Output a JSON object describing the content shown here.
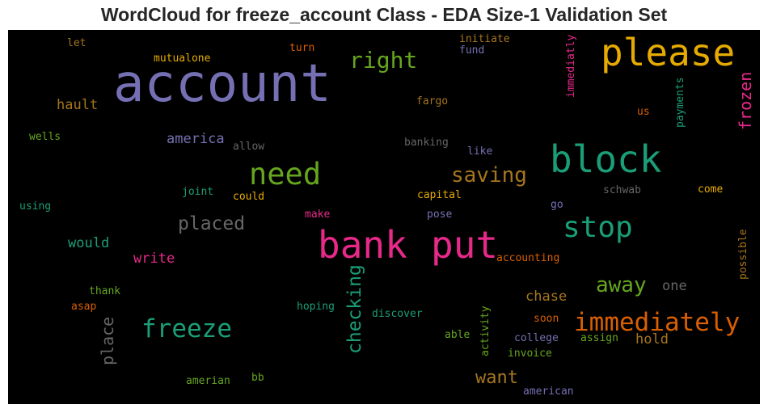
{
  "chart_data": {
    "type": "wordcloud",
    "title": "WordCloud for freeze_account Class - EDA Size-1 Validation Set",
    "background": "#000000",
    "words": [
      {
        "text": "account",
        "color": "#7570b3",
        "weight": 1.0
      },
      {
        "text": "please",
        "color": "#e6ab02",
        "weight": 0.62
      },
      {
        "text": "bank",
        "color": "#e7298a",
        "weight": 0.62
      },
      {
        "text": "put",
        "color": "#e7298a",
        "weight": 0.62
      },
      {
        "text": "block",
        "color": "#1b9e77",
        "weight": 0.62
      },
      {
        "text": "need",
        "color": "#66a61e",
        "weight": 0.5
      },
      {
        "text": "stop",
        "color": "#1b9e77",
        "weight": 0.48
      },
      {
        "text": "freeze",
        "color": "#1b9e77",
        "weight": 0.42
      },
      {
        "text": "immediately",
        "color": "#d95f02",
        "weight": 0.42
      },
      {
        "text": "right",
        "color": "#66a61e",
        "weight": 0.38
      },
      {
        "text": "saving",
        "color": "#a6761d",
        "weight": 0.36
      },
      {
        "text": "away",
        "color": "#66a61e",
        "weight": 0.36
      },
      {
        "text": "placed",
        "color": "#666666",
        "weight": 0.32
      },
      {
        "text": "checking",
        "color": "#1b9e77",
        "weight": 0.32
      },
      {
        "text": "want",
        "color": "#a6761d",
        "weight": 0.3
      },
      {
        "text": "frozen",
        "color": "#e7298a",
        "weight": 0.28
      },
      {
        "text": "place",
        "color": "#666666",
        "weight": 0.28
      },
      {
        "text": "america",
        "color": "#7570b3",
        "weight": 0.25
      },
      {
        "text": "would",
        "color": "#1b9e77",
        "weight": 0.25
      },
      {
        "text": "hault",
        "color": "#a6761d",
        "weight": 0.24
      },
      {
        "text": "write",
        "color": "#e7298a",
        "weight": 0.24
      },
      {
        "text": "chase",
        "color": "#a6761d",
        "weight": 0.24
      },
      {
        "text": "hold",
        "color": "#a6761d",
        "weight": 0.24
      },
      {
        "text": "one",
        "color": "#666666",
        "weight": 0.23
      },
      {
        "text": "mutualone",
        "color": "#e6ab02",
        "weight": 0.18
      },
      {
        "text": "turn",
        "color": "#d95f02",
        "weight": 0.18
      },
      {
        "text": "initiate",
        "color": "#a6761d",
        "weight": 0.18
      },
      {
        "text": "fund",
        "color": "#7570b3",
        "weight": 0.18
      },
      {
        "text": "immediatly",
        "color": "#e7298a",
        "weight": 0.18
      },
      {
        "text": "let",
        "color": "#a6761d",
        "weight": 0.18
      },
      {
        "text": "fargo",
        "color": "#a6761d",
        "weight": 0.18
      },
      {
        "text": "us",
        "color": "#d95f02",
        "weight": 0.18
      },
      {
        "text": "payments",
        "color": "#1b9e77",
        "weight": 0.18
      },
      {
        "text": "wells",
        "color": "#66a61e",
        "weight": 0.18
      },
      {
        "text": "allow",
        "color": "#666666",
        "weight": 0.18
      },
      {
        "text": "banking",
        "color": "#666666",
        "weight": 0.18
      },
      {
        "text": "like",
        "color": "#7570b3",
        "weight": 0.18
      },
      {
        "text": "joint",
        "color": "#1b9e77",
        "weight": 0.18
      },
      {
        "text": "could",
        "color": "#e6ab02",
        "weight": 0.18
      },
      {
        "text": "capital",
        "color": "#e6ab02",
        "weight": 0.18
      },
      {
        "text": "schwab",
        "color": "#666666",
        "weight": 0.18
      },
      {
        "text": "come",
        "color": "#e6ab02",
        "weight": 0.18
      },
      {
        "text": "using",
        "color": "#1b9e77",
        "weight": 0.18
      },
      {
        "text": "make",
        "color": "#e7298a",
        "weight": 0.18
      },
      {
        "text": "pose",
        "color": "#7570b3",
        "weight": 0.18
      },
      {
        "text": "go",
        "color": "#7570b3",
        "weight": 0.18
      },
      {
        "text": "possible",
        "color": "#a6761d",
        "weight": 0.18
      },
      {
        "text": "accounting",
        "color": "#d95f02",
        "weight": 0.18
      },
      {
        "text": "thank",
        "color": "#66a61e",
        "weight": 0.18
      },
      {
        "text": "asap",
        "color": "#d95f02",
        "weight": 0.18
      },
      {
        "text": "hoping",
        "color": "#1b9e77",
        "weight": 0.18
      },
      {
        "text": "discover",
        "color": "#1b9e77",
        "weight": 0.18
      },
      {
        "text": "soon",
        "color": "#d95f02",
        "weight": 0.18
      },
      {
        "text": "able",
        "color": "#66a61e",
        "weight": 0.18
      },
      {
        "text": "activity",
        "color": "#66a61e",
        "weight": 0.18
      },
      {
        "text": "college",
        "color": "#7570b3",
        "weight": 0.18
      },
      {
        "text": "assign",
        "color": "#66a61e",
        "weight": 0.18
      },
      {
        "text": "invoice",
        "color": "#66a61e",
        "weight": 0.18
      },
      {
        "text": "amerian",
        "color": "#66a61e",
        "weight": 0.18
      },
      {
        "text": "bb",
        "color": "#66a61e",
        "weight": 0.18
      },
      {
        "text": "american",
        "color": "#7570b3",
        "weight": 0.18
      }
    ]
  }
}
